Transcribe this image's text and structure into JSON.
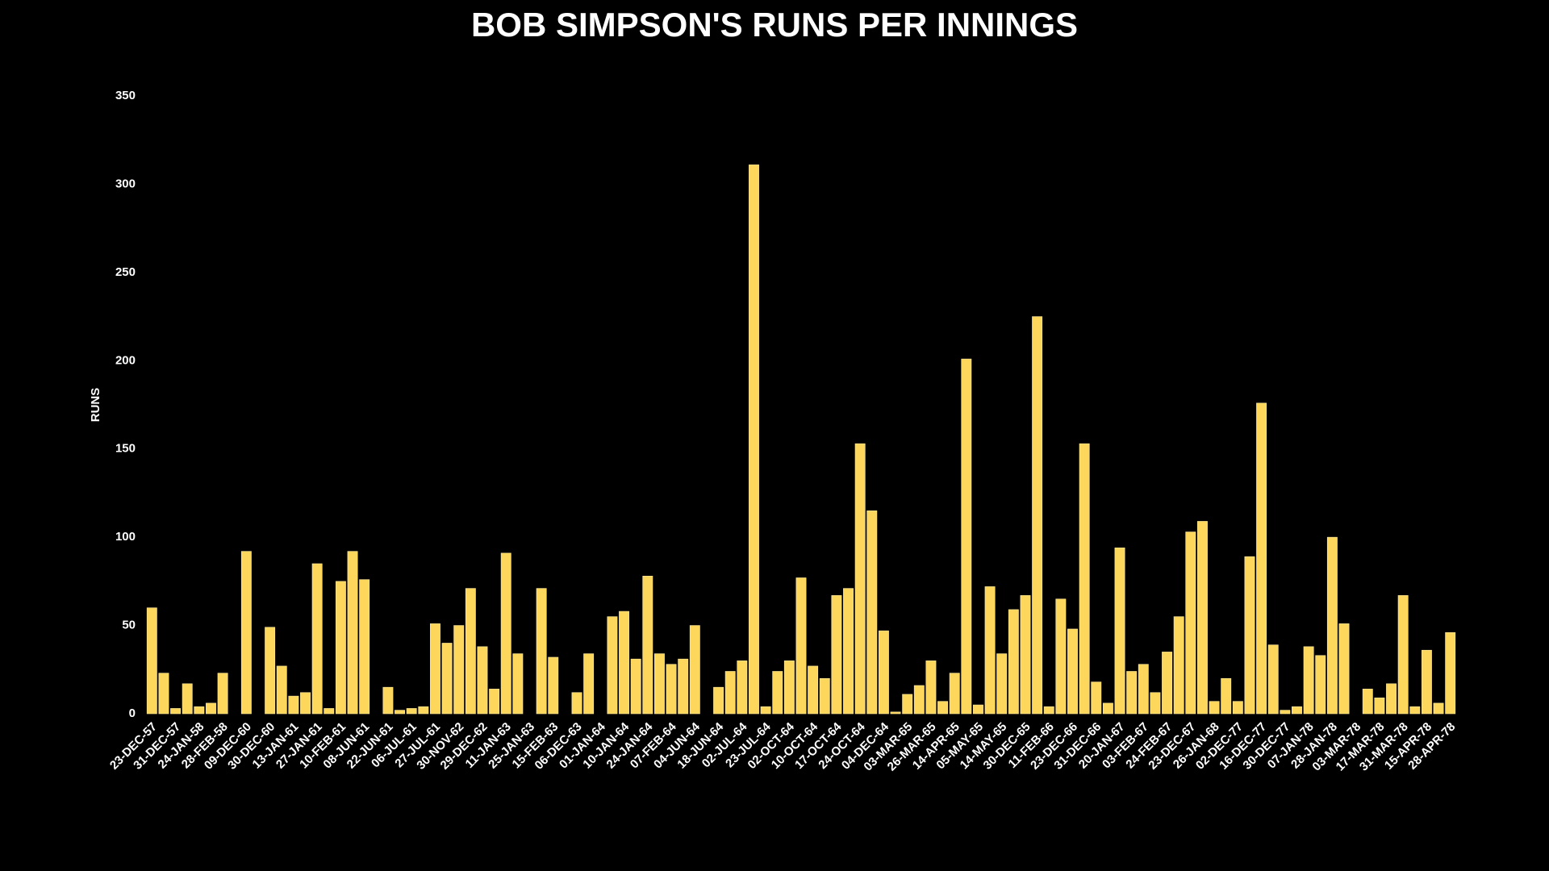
{
  "chart_data": {
    "type": "bar",
    "title": "BOB SIMPSON'S RUNS PER INNINGS",
    "y_label": "RUNS",
    "categories": [
      "23-DEC-57",
      null,
      "31-DEC-57",
      null,
      "24-JAN-58",
      null,
      "28-FEB-58",
      null,
      "09-DEC-60",
      null,
      "30-DEC-60",
      null,
      "13-JAN-61",
      null,
      "27-JAN-61",
      null,
      "10-FEB-61",
      null,
      "08-JUN-61",
      null,
      "22-JUN-61",
      null,
      "06-JUL-61",
      null,
      "27-JUL-61",
      null,
      "30-NOV-62",
      null,
      "29-DEC-62",
      null,
      "11-JAN-63",
      null,
      "25-JAN-63",
      null,
      "15-FEB-63",
      null,
      "06-DEC-63",
      null,
      "01-JAN-64",
      null,
      "10-JAN-64",
      null,
      "24-JAN-64",
      null,
      "07-FEB-64",
      null,
      "04-JUN-64",
      null,
      "18-JUN-64",
      null,
      "02-JUL-64",
      null,
      "23-JUL-64",
      null,
      "02-OCT-64",
      null,
      "10-OCT-64",
      null,
      "17-OCT-64",
      null,
      "24-OCT-64",
      null,
      "04-DEC-64",
      null,
      "03-MAR-65",
      null,
      "26-MAR-65",
      null,
      "14-APR-65",
      null,
      "05-MAY-65",
      null,
      "14-MAY-65",
      null,
      "30-DEC-65",
      null,
      "11-FEB-66",
      null,
      "23-DEC-66",
      null,
      "31-DEC-66",
      null,
      "20-JAN-67",
      null,
      "03-FEB-67",
      null,
      "24-FEB-67",
      null,
      "23-DEC-67",
      null,
      "26-JAN-68",
      null,
      "02-DEC-77",
      null,
      "16-DEC-77",
      null,
      "30-DEC-77",
      null,
      "07-JAN-78",
      null,
      "28-JAN-78",
      null,
      "03-MAR-78",
      null,
      "17-MAR-78",
      null,
      "31-MAR-78",
      null,
      "15-APR-78",
      null,
      "28-APR-78"
    ],
    "values": [
      60,
      23,
      3,
      17,
      4,
      6,
      23,
      0,
      92,
      0,
      49,
      27,
      10,
      12,
      85,
      3,
      75,
      92,
      76,
      0,
      15,
      2,
      3,
      4,
      51,
      40,
      50,
      71,
      38,
      14,
      91,
      34,
      0,
      71,
      32,
      0,
      12,
      34,
      0,
      55,
      58,
      31,
      78,
      34,
      28,
      31,
      50,
      0,
      15,
      24,
      30,
      311,
      4,
      24,
      30,
      77,
      27,
      20,
      67,
      71,
      153,
      115,
      47,
      1,
      11,
      16,
      30,
      7,
      23,
      201,
      5,
      72,
      34,
      59,
      67,
      225,
      4,
      65,
      48,
      153,
      18,
      6,
      94,
      24,
      28,
      12,
      35,
      55,
      103,
      109,
      7,
      20,
      7,
      89,
      176,
      39,
      2,
      4,
      38,
      33,
      100,
      51,
      0,
      14,
      9,
      17,
      67,
      4,
      36,
      6,
      46
    ],
    "color": "#fcd75c",
    "ylim": [
      0,
      350
    ],
    "yticks": [
      0,
      50,
      100,
      150,
      200,
      250,
      300,
      350
    ],
    "grid": false
  }
}
